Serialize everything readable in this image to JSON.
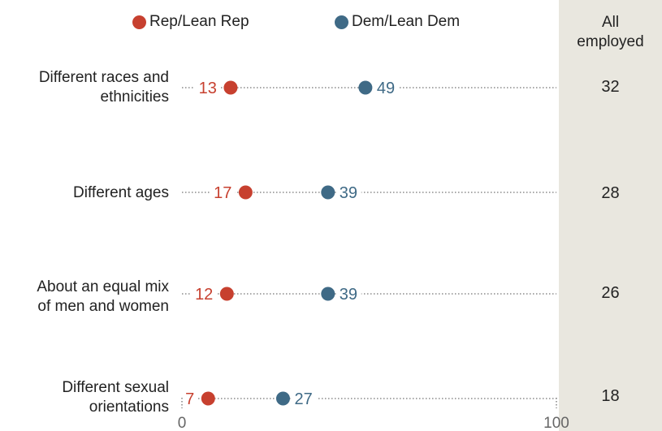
{
  "chart_data": {
    "type": "dot",
    "xlim": [
      0,
      100
    ],
    "x_ticks": [
      "0",
      "100"
    ],
    "legend": [
      {
        "name": "Rep/Lean Rep",
        "color": "#c7402f"
      },
      {
        "name": "Dem/Lean Dem",
        "color": "#3f6a86"
      }
    ],
    "all_header": "All\nemployed",
    "categories": [
      "Different races and\nethnicities",
      "Different ages",
      "About an equal mix\nof men and women",
      "Different sexual\norientations"
    ],
    "series": [
      {
        "name": "Rep/Lean Rep",
        "color": "#c7402f",
        "values": [
          13,
          17,
          12,
          7
        ]
      },
      {
        "name": "Dem/Lean Dem",
        "color": "#3f6a86",
        "values": [
          49,
          39,
          39,
          27
        ]
      }
    ],
    "all_employed": [
      32,
      28,
      26,
      18
    ]
  }
}
